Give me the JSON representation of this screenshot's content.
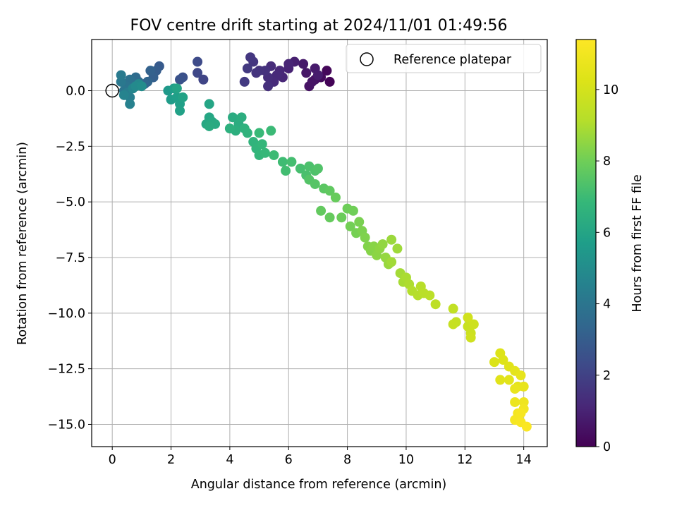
{
  "chart_data": {
    "type": "scatter",
    "title": "FOV centre drift starting at 2024/11/01 01:49:56",
    "xlabel": "Angular distance from reference (arcmin)",
    "ylabel": "Rotation from reference (arcmin)",
    "xlim": [
      -0.7,
      14.8
    ],
    "ylim": [
      -16.0,
      2.3
    ],
    "xticks": [
      0,
      2,
      4,
      6,
      8,
      10,
      12,
      14
    ],
    "xtick_labels": [
      "0",
      "2",
      "4",
      "6",
      "8",
      "10",
      "12",
      "14"
    ],
    "yticks": [
      0.0,
      -2.5,
      -5.0,
      -7.5,
      -10.0,
      -12.5,
      -15.0
    ],
    "ytick_labels": [
      "0.0",
      "−2.5",
      "−5.0",
      "−7.5",
      "−10.0",
      "−12.5",
      "−15.0"
    ],
    "grid": true,
    "colormap": "viridis",
    "colorbar": {
      "label": "Hours from first FF file",
      "range": [
        0,
        11.4
      ],
      "ticks": [
        0,
        2,
        4,
        6,
        8,
        10
      ],
      "tick_labels": [
        "0",
        "2",
        "4",
        "6",
        "8",
        "10"
      ]
    },
    "legend": {
      "position": "top-right",
      "entries": [
        "Reference platepar"
      ]
    },
    "reference_point": {
      "x": 0,
      "y": 0,
      "label": "Reference platepar"
    },
    "series": [
      {
        "points": [
          {
            "x": 7.4,
            "y": 0.4,
            "c": 0.1
          },
          {
            "x": 7.3,
            "y": 0.9,
            "c": 0.2
          },
          {
            "x": 7.1,
            "y": 0.6,
            "c": 0.3
          },
          {
            "x": 6.9,
            "y": 0.5,
            "c": 0.4
          },
          {
            "x": 6.7,
            "y": 0.2,
            "c": 0.5
          },
          {
            "x": 6.8,
            "y": 0.4,
            "c": 0.55
          },
          {
            "x": 6.6,
            "y": 0.8,
            "c": 0.6
          },
          {
            "x": 6.5,
            "y": 1.2,
            "c": 0.7
          },
          {
            "x": 6.9,
            "y": 1.0,
            "c": 0.75
          },
          {
            "x": 7.0,
            "y": 0.7,
            "c": 0.8
          },
          {
            "x": 6.2,
            "y": 1.3,
            "c": 0.9
          },
          {
            "x": 6.0,
            "y": 1.0,
            "c": 1.0
          },
          {
            "x": 6.0,
            "y": 1.2,
            "c": 1.05
          },
          {
            "x": 5.8,
            "y": 0.6,
            "c": 1.1
          },
          {
            "x": 5.7,
            "y": 0.9,
            "c": 1.15
          },
          {
            "x": 5.6,
            "y": 0.7,
            "c": 1.2
          },
          {
            "x": 5.5,
            "y": 0.4,
            "c": 1.25
          },
          {
            "x": 5.4,
            "y": 1.1,
            "c": 1.3
          },
          {
            "x": 5.3,
            "y": 0.6,
            "c": 1.35
          },
          {
            "x": 5.3,
            "y": 0.2,
            "c": 1.4
          },
          {
            "x": 5.2,
            "y": 0.9,
            "c": 1.45
          },
          {
            "x": 5.0,
            "y": 0.9,
            "c": 1.5
          },
          {
            "x": 4.9,
            "y": 0.8,
            "c": 1.55
          },
          {
            "x": 4.8,
            "y": 1.3,
            "c": 1.6
          },
          {
            "x": 4.7,
            "y": 1.5,
            "c": 1.65
          },
          {
            "x": 4.6,
            "y": 1.0,
            "c": 1.7
          },
          {
            "x": 4.5,
            "y": 0.4,
            "c": 1.75
          },
          {
            "x": 3.1,
            "y": 0.5,
            "c": 2.1
          },
          {
            "x": 2.9,
            "y": 0.8,
            "c": 2.2
          },
          {
            "x": 2.9,
            "y": 1.3,
            "c": 2.3
          },
          {
            "x": 2.4,
            "y": 0.6,
            "c": 2.5
          },
          {
            "x": 2.3,
            "y": 0.5,
            "c": 2.6
          },
          {
            "x": 1.6,
            "y": 1.1,
            "c": 2.9
          },
          {
            "x": 1.5,
            "y": 0.9,
            "c": 3.0
          },
          {
            "x": 1.4,
            "y": 0.6,
            "c": 3.1
          },
          {
            "x": 1.3,
            "y": 0.9,
            "c": 3.2
          },
          {
            "x": 1.2,
            "y": 0.4,
            "c": 3.3
          },
          {
            "x": 1.1,
            "y": 0.3,
            "c": 3.4
          },
          {
            "x": 0.9,
            "y": 0.4,
            "c": 3.5
          },
          {
            "x": 0.8,
            "y": 0.6,
            "c": 3.6
          },
          {
            "x": 0.7,
            "y": 0.3,
            "c": 3.7
          },
          {
            "x": 0.6,
            "y": 0.5,
            "c": 3.8
          },
          {
            "x": 0.5,
            "y": 0.2,
            "c": 3.9
          },
          {
            "x": 0.4,
            "y": 0.0,
            "c": 4.0
          },
          {
            "x": 0.3,
            "y": 0.4,
            "c": 4.1
          },
          {
            "x": 0.3,
            "y": 0.7,
            "c": 4.2
          },
          {
            "x": 0.5,
            "y": -0.1,
            "c": 4.3
          },
          {
            "x": 0.6,
            "y": -0.3,
            "c": 4.4
          },
          {
            "x": 0.6,
            "y": -0.6,
            "c": 4.5
          },
          {
            "x": 0.4,
            "y": -0.2,
            "c": 4.6
          },
          {
            "x": 0.7,
            "y": 0.1,
            "c": 4.7
          },
          {
            "x": 0.9,
            "y": 0.3,
            "c": 4.8
          },
          {
            "x": 0.8,
            "y": 0.2,
            "c": 4.9
          },
          {
            "x": 1.0,
            "y": 0.2,
            "c": 5.0
          },
          {
            "x": 1.9,
            "y": 0.0,
            "c": 5.5
          },
          {
            "x": 2.0,
            "y": -0.4,
            "c": 5.6
          },
          {
            "x": 2.1,
            "y": 0.1,
            "c": 5.7
          },
          {
            "x": 2.2,
            "y": -0.3,
            "c": 5.75
          },
          {
            "x": 2.3,
            "y": -0.6,
            "c": 5.8
          },
          {
            "x": 2.3,
            "y": -0.9,
            "c": 5.85
          },
          {
            "x": 2.4,
            "y": -0.3,
            "c": 5.9
          },
          {
            "x": 2.2,
            "y": 0.1,
            "c": 5.95
          },
          {
            "x": 3.3,
            "y": -0.6,
            "c": 6.0
          },
          {
            "x": 3.3,
            "y": -1.2,
            "c": 6.05
          },
          {
            "x": 3.2,
            "y": -1.5,
            "c": 6.1
          },
          {
            "x": 3.4,
            "y": -1.4,
            "c": 6.15
          },
          {
            "x": 3.5,
            "y": -1.5,
            "c": 6.2
          },
          {
            "x": 3.3,
            "y": -1.6,
            "c": 6.25
          },
          {
            "x": 4.1,
            "y": -1.2,
            "c": 6.3
          },
          {
            "x": 4.3,
            "y": -1.5,
            "c": 6.35
          },
          {
            "x": 4.4,
            "y": -1.2,
            "c": 6.4
          },
          {
            "x": 4.2,
            "y": -1.8,
            "c": 6.45
          },
          {
            "x": 4.0,
            "y": -1.7,
            "c": 6.5
          },
          {
            "x": 4.5,
            "y": -1.7,
            "c": 6.55
          },
          {
            "x": 4.6,
            "y": -1.9,
            "c": 6.6
          },
          {
            "x": 4.8,
            "y": -2.3,
            "c": 6.65
          },
          {
            "x": 4.9,
            "y": -2.6,
            "c": 6.7
          },
          {
            "x": 5.0,
            "y": -2.9,
            "c": 6.75
          },
          {
            "x": 5.1,
            "y": -2.4,
            "c": 6.8
          },
          {
            "x": 5.2,
            "y": -2.8,
            "c": 6.85
          },
          {
            "x": 5.0,
            "y": -1.9,
            "c": 6.9
          },
          {
            "x": 5.4,
            "y": -1.8,
            "c": 6.95
          },
          {
            "x": 5.5,
            "y": -2.9,
            "c": 7.0
          },
          {
            "x": 5.8,
            "y": -3.2,
            "c": 7.05
          },
          {
            "x": 5.9,
            "y": -3.6,
            "c": 7.1
          },
          {
            "x": 6.1,
            "y": -3.2,
            "c": 7.15
          },
          {
            "x": 6.4,
            "y": -3.5,
            "c": 7.2
          },
          {
            "x": 6.6,
            "y": -3.8,
            "c": 7.25
          },
          {
            "x": 6.7,
            "y": -3.4,
            "c": 7.3
          },
          {
            "x": 6.9,
            "y": -3.6,
            "c": 7.35
          },
          {
            "x": 7.0,
            "y": -3.5,
            "c": 7.4
          },
          {
            "x": 6.7,
            "y": -4.0,
            "c": 7.45
          },
          {
            "x": 6.9,
            "y": -4.2,
            "c": 7.5
          },
          {
            "x": 7.2,
            "y": -4.4,
            "c": 7.6
          },
          {
            "x": 7.4,
            "y": -4.5,
            "c": 7.7
          },
          {
            "x": 7.1,
            "y": -5.4,
            "c": 7.75
          },
          {
            "x": 7.4,
            "y": -5.7,
            "c": 7.8
          },
          {
            "x": 7.6,
            "y": -4.8,
            "c": 7.85
          },
          {
            "x": 7.8,
            "y": -5.7,
            "c": 7.9
          },
          {
            "x": 8.0,
            "y": -5.3,
            "c": 7.95
          },
          {
            "x": 8.2,
            "y": -5.4,
            "c": 8.0
          },
          {
            "x": 8.1,
            "y": -6.1,
            "c": 8.05
          },
          {
            "x": 8.3,
            "y": -6.4,
            "c": 8.1
          },
          {
            "x": 8.4,
            "y": -5.9,
            "c": 8.15
          },
          {
            "x": 8.5,
            "y": -6.3,
            "c": 8.2
          },
          {
            "x": 8.6,
            "y": -6.6,
            "c": 8.25
          },
          {
            "x": 8.7,
            "y": -7.0,
            "c": 8.3
          },
          {
            "x": 8.8,
            "y": -7.2,
            "c": 8.35
          },
          {
            "x": 8.9,
            "y": -7.0,
            "c": 8.4
          },
          {
            "x": 9.0,
            "y": -7.4,
            "c": 8.45
          },
          {
            "x": 9.1,
            "y": -7.1,
            "c": 8.5
          },
          {
            "x": 9.2,
            "y": -6.9,
            "c": 8.55
          },
          {
            "x": 9.3,
            "y": -7.5,
            "c": 8.6
          },
          {
            "x": 9.4,
            "y": -7.8,
            "c": 8.65
          },
          {
            "x": 9.5,
            "y": -6.7,
            "c": 8.7
          },
          {
            "x": 9.7,
            "y": -7.1,
            "c": 8.75
          },
          {
            "x": 9.5,
            "y": -7.7,
            "c": 8.8
          },
          {
            "x": 9.8,
            "y": -8.2,
            "c": 8.85
          },
          {
            "x": 9.9,
            "y": -8.6,
            "c": 8.9
          },
          {
            "x": 10.0,
            "y": -8.4,
            "c": 8.95
          },
          {
            "x": 10.1,
            "y": -8.7,
            "c": 9.0
          },
          {
            "x": 10.2,
            "y": -9.0,
            "c": 9.1
          },
          {
            "x": 10.4,
            "y": -9.2,
            "c": 9.15
          },
          {
            "x": 10.5,
            "y": -8.8,
            "c": 9.2
          },
          {
            "x": 10.6,
            "y": -9.1,
            "c": 9.25
          },
          {
            "x": 10.8,
            "y": -9.2,
            "c": 9.3
          },
          {
            "x": 11.0,
            "y": -9.6,
            "c": 9.35
          },
          {
            "x": 11.6,
            "y": -9.8,
            "c": 9.5
          },
          {
            "x": 11.7,
            "y": -10.4,
            "c": 9.55
          },
          {
            "x": 11.6,
            "y": -10.5,
            "c": 9.6
          },
          {
            "x": 12.1,
            "y": -10.6,
            "c": 9.7
          },
          {
            "x": 12.2,
            "y": -10.9,
            "c": 9.75
          },
          {
            "x": 12.3,
            "y": -10.5,
            "c": 9.8
          },
          {
            "x": 12.2,
            "y": -11.1,
            "c": 9.85
          },
          {
            "x": 12.1,
            "y": -10.2,
            "c": 9.9
          },
          {
            "x": 13.0,
            "y": -12.2,
            "c": 10.2
          },
          {
            "x": 13.2,
            "y": -11.8,
            "c": 10.25
          },
          {
            "x": 13.3,
            "y": -12.1,
            "c": 10.3
          },
          {
            "x": 13.5,
            "y": -12.4,
            "c": 10.35
          },
          {
            "x": 13.2,
            "y": -13.0,
            "c": 10.4
          },
          {
            "x": 13.5,
            "y": -13.0,
            "c": 10.45
          },
          {
            "x": 13.7,
            "y": -12.6,
            "c": 10.5
          },
          {
            "x": 13.8,
            "y": -13.3,
            "c": 10.55
          },
          {
            "x": 13.9,
            "y": -12.8,
            "c": 10.6
          },
          {
            "x": 14.0,
            "y": -13.3,
            "c": 10.65
          },
          {
            "x": 13.7,
            "y": -13.4,
            "c": 10.7
          },
          {
            "x": 13.7,
            "y": -14.0,
            "c": 10.8
          },
          {
            "x": 14.0,
            "y": -14.0,
            "c": 10.9
          },
          {
            "x": 14.0,
            "y": -14.3,
            "c": 11.0
          },
          {
            "x": 13.8,
            "y": -14.5,
            "c": 11.05
          },
          {
            "x": 13.7,
            "y": -14.8,
            "c": 11.1
          },
          {
            "x": 13.9,
            "y": -14.5,
            "c": 11.15
          },
          {
            "x": 13.9,
            "y": -14.9,
            "c": 11.2
          },
          {
            "x": 14.1,
            "y": -15.1,
            "c": 11.3
          }
        ]
      }
    ]
  }
}
